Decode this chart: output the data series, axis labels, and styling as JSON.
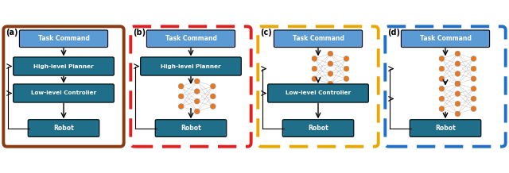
{
  "fig_width": 6.4,
  "fig_height": 2.18,
  "dpi": 100,
  "bg_color": "#ffffff",
  "task_box_color": "#5b9bd5",
  "block_color": "#1f6f8b",
  "text_color": "white",
  "node_color": "#e87722",
  "border_colors": [
    "#8B3A0F",
    "#e02020",
    "#e8a800",
    "#2070c8"
  ],
  "border_styles": [
    "solid",
    "dashed",
    "dashed",
    "dashed"
  ],
  "panel_labels": [
    "(a)",
    "(b)",
    "(c)",
    "(d)"
  ]
}
